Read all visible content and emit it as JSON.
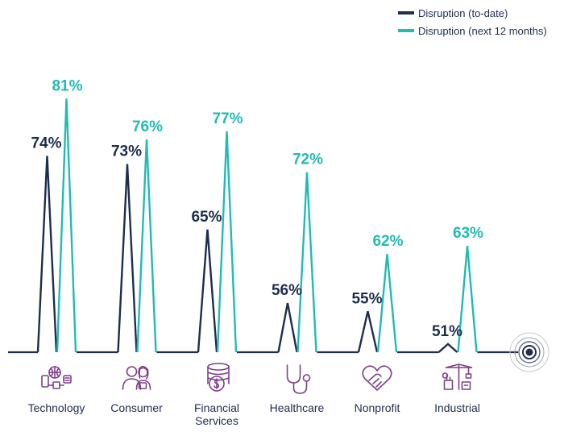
{
  "chart_data": {
    "type": "line",
    "title": "",
    "xlabel": "",
    "ylabel": "",
    "ylim": [
      50,
      81
    ],
    "categories": [
      "Technology",
      "Consumer",
      "Financial Services",
      "Healthcare",
      "Nonprofit",
      "Industrial"
    ],
    "category_lines": [
      [
        "Technology"
      ],
      [
        "Consumer"
      ],
      [
        "Financial",
        "Services"
      ],
      [
        "Healthcare"
      ],
      [
        "Nonprofit"
      ],
      [
        "Industrial"
      ]
    ],
    "series": [
      {
        "name": "Disruption (to-date)",
        "color": "#1e2d4f",
        "values": [
          74,
          73,
          65,
          56,
          55,
          51
        ],
        "labels": [
          "74%",
          "73%",
          "65%",
          "56%",
          "55%",
          "51%"
        ]
      },
      {
        "name": "Disruption (next 12 months)",
        "color": "#1fbcb3",
        "values": [
          81,
          76,
          77,
          72,
          62,
          63
        ],
        "labels": [
          "81%",
          "76%",
          "77%",
          "72%",
          "62%",
          "63%"
        ]
      }
    ],
    "legend_position": "top-right",
    "category_icons": [
      "technology-icon",
      "consumer-icon",
      "financial-services-icon",
      "healthcare-icon",
      "nonprofit-icon",
      "industrial-icon"
    ],
    "end_marker_icon": "target-icon"
  },
  "colors": {
    "accent_dark": "#1e2d4f",
    "accent_teal": "#1fbcb3",
    "icon_purple": "#7e3f88"
  }
}
